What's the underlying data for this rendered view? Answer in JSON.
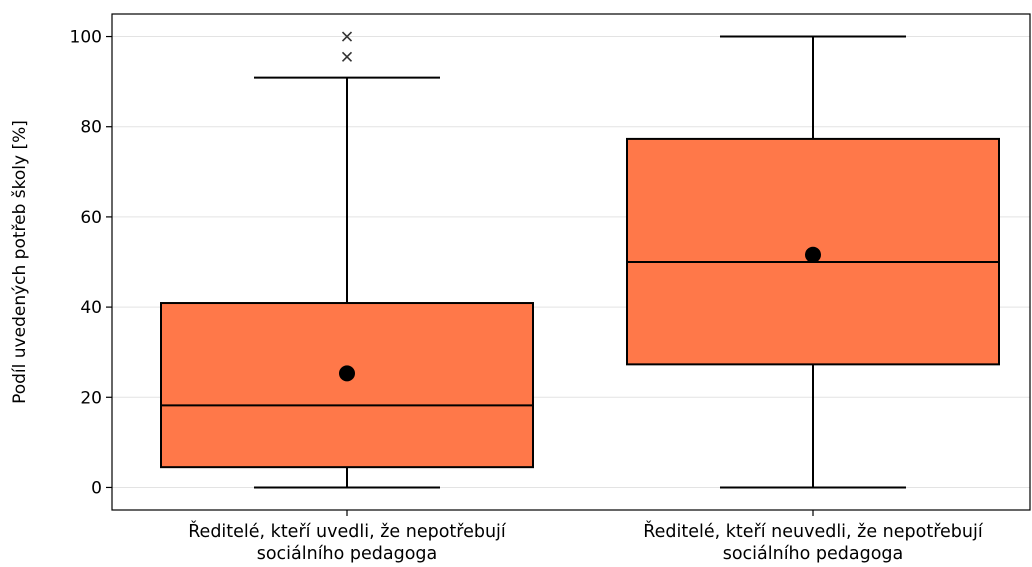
{
  "chart_data": {
    "type": "boxplot",
    "title": "",
    "ylabel": "Podíl uvedených potřeb školy [%]",
    "xlabel": "",
    "ylim": [
      -5,
      105
    ],
    "yticks": [
      0,
      20,
      40,
      60,
      80,
      100
    ],
    "grid": "horizontal",
    "box_color": "#FF7849",
    "categories": [
      [
        "Ředitelé, kteří uvedli, že nepotřebují",
        "sociálního pedagoga"
      ],
      [
        "Ředitelé, kteří neuvedli, že nepotřebují",
        "sociálního pedagoga"
      ]
    ],
    "boxes": [
      {
        "whisker_low": 0,
        "q1": 4.5,
        "median": 18.2,
        "q3": 40.9,
        "whisker_high": 90.9,
        "mean": 25.3,
        "outliers": [
          95.5,
          100
        ]
      },
      {
        "whisker_low": 0,
        "q1": 27.3,
        "median": 50.0,
        "q3": 77.3,
        "whisker_high": 100,
        "mean": 51.6,
        "outliers": []
      }
    ]
  }
}
